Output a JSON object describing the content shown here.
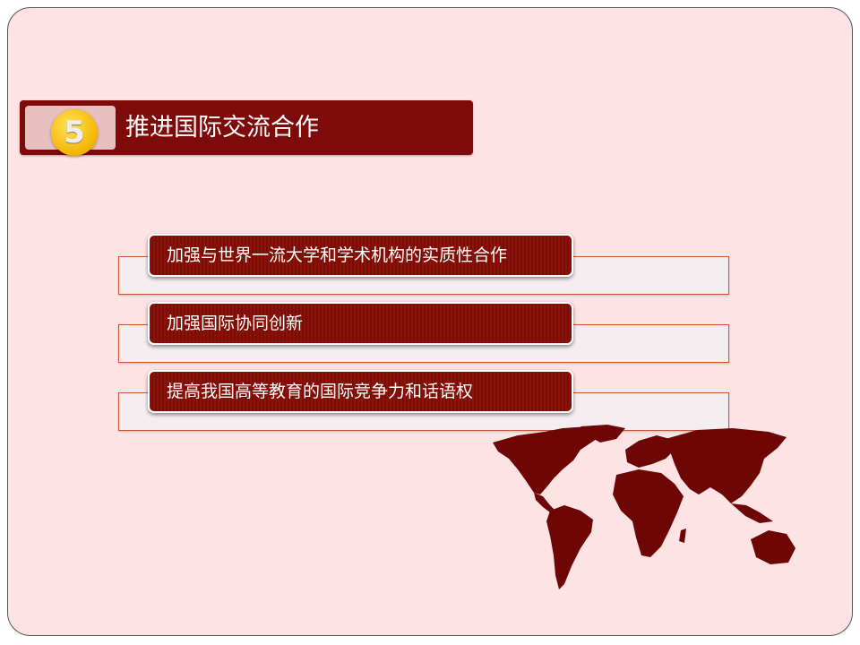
{
  "title": {
    "number": "5",
    "text": "推进国际交流合作"
  },
  "items": [
    {
      "label": "加强与世界一流大学和学术机构的实质性合作"
    },
    {
      "label": "加强国际协同创新"
    },
    {
      "label": "提高我国高等教育的国际竞争力和话语权"
    }
  ],
  "colors": {
    "background": "#fde3e3",
    "accent": "#7f0a0a",
    "badge": "#f5b400"
  },
  "icons": {
    "map": "world-map-icon"
  }
}
